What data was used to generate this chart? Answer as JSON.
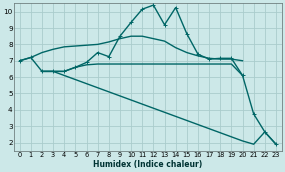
{
  "xlabel": "Humidex (Indice chaleur)",
  "background_color": "#cce8e8",
  "grid_color": "#aacccc",
  "line_color": "#006666",
  "xlim": [
    -0.5,
    23.5
  ],
  "ylim": [
    1.5,
    10.5
  ],
  "yticks": [
    2,
    3,
    4,
    5,
    6,
    7,
    8,
    9,
    10
  ],
  "xticks": [
    0,
    1,
    2,
    3,
    4,
    5,
    6,
    7,
    8,
    9,
    10,
    11,
    12,
    13,
    14,
    15,
    16,
    17,
    18,
    19,
    20,
    21,
    22,
    23
  ],
  "lines": [
    {
      "x": [
        0,
        1,
        2,
        3,
        4,
        5,
        6,
        7,
        8,
        9,
        10,
        11,
        12,
        13,
        14,
        15,
        16,
        17,
        18,
        19,
        20
      ],
      "y": [
        7.0,
        7.2,
        7.5,
        7.7,
        7.85,
        7.9,
        7.95,
        8.0,
        8.15,
        8.35,
        8.5,
        8.5,
        8.35,
        8.2,
        7.8,
        7.5,
        7.3,
        7.15,
        7.1,
        7.1,
        7.0
      ],
      "marker": false,
      "lw": 1.0
    },
    {
      "x": [
        0,
        1,
        2,
        3,
        4,
        5,
        6,
        7,
        8,
        9,
        10,
        11,
        12,
        13,
        14,
        15,
        16,
        17,
        18,
        19,
        20,
        21,
        22,
        23
      ],
      "y": [
        7.0,
        7.2,
        6.35,
        6.35,
        6.35,
        6.6,
        6.9,
        7.5,
        7.25,
        8.5,
        9.35,
        10.15,
        10.4,
        9.2,
        10.25,
        8.65,
        7.4,
        7.1,
        7.15,
        7.15,
        6.1,
        3.75,
        2.65,
        1.9
      ],
      "marker": true,
      "lw": 1.0
    },
    {
      "x": [
        2,
        3,
        4,
        5,
        6,
        7,
        8,
        9,
        10,
        11,
        12,
        13,
        14,
        15,
        16,
        17,
        18,
        19,
        20
      ],
      "y": [
        6.35,
        6.35,
        6.35,
        6.6,
        6.75,
        6.8,
        6.8,
        6.8,
        6.8,
        6.8,
        6.8,
        6.8,
        6.8,
        6.8,
        6.8,
        6.8,
        6.8,
        6.8,
        6.1
      ],
      "marker": false,
      "lw": 1.0
    },
    {
      "x": [
        2,
        3,
        4,
        5,
        6,
        7,
        8,
        9,
        10,
        11,
        12,
        13,
        14,
        15,
        16,
        17,
        18,
        19,
        20,
        21,
        22,
        23
      ],
      "y": [
        6.35,
        6.35,
        6.1,
        5.85,
        5.6,
        5.35,
        5.1,
        4.85,
        4.6,
        4.35,
        4.1,
        3.85,
        3.6,
        3.35,
        3.1,
        2.85,
        2.6,
        2.35,
        2.1,
        1.9,
        2.65,
        1.9
      ],
      "marker": false,
      "lw": 1.0
    }
  ]
}
